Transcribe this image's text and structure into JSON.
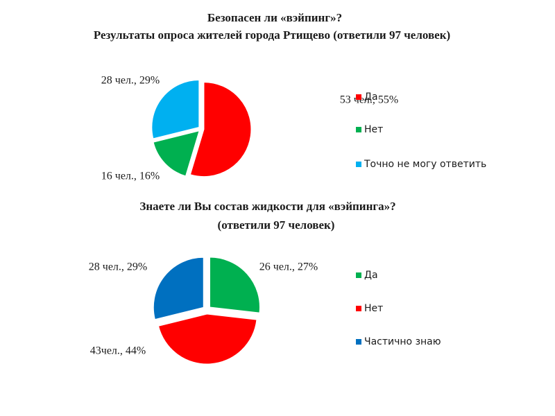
{
  "chart_data": [
    {
      "type": "pie",
      "title": "Безопасен ли «вэйпинг»?",
      "subtitle": "Результаты опроса жителей города Ртищево (ответили 97 человек)",
      "categories": [
        "Да",
        "Нет",
        "Точно не могу ответить"
      ],
      "values": [
        53,
        16,
        28
      ],
      "value_labels": [
        "53 чел., 55%",
        "16 чел.,  16%",
        "28 чел., 29%"
      ],
      "colors": [
        "#ff0000",
        "#00b050",
        "#00b0f0"
      ]
    },
    {
      "type": "pie",
      "title": "Знаете ли Вы состав жидкости для  «вэйпинга»?",
      "subtitle": "(ответили 97 человек)",
      "categories": [
        "Да",
        "Нет",
        "Частично знаю"
      ],
      "values": [
        26,
        43,
        28
      ],
      "value_labels": [
        "26 чел., 27%",
        "43чел.,  44%",
        "28 чел., 29%"
      ],
      "colors": [
        "#00b050",
        "#ff0000",
        "#0070c0"
      ]
    }
  ]
}
